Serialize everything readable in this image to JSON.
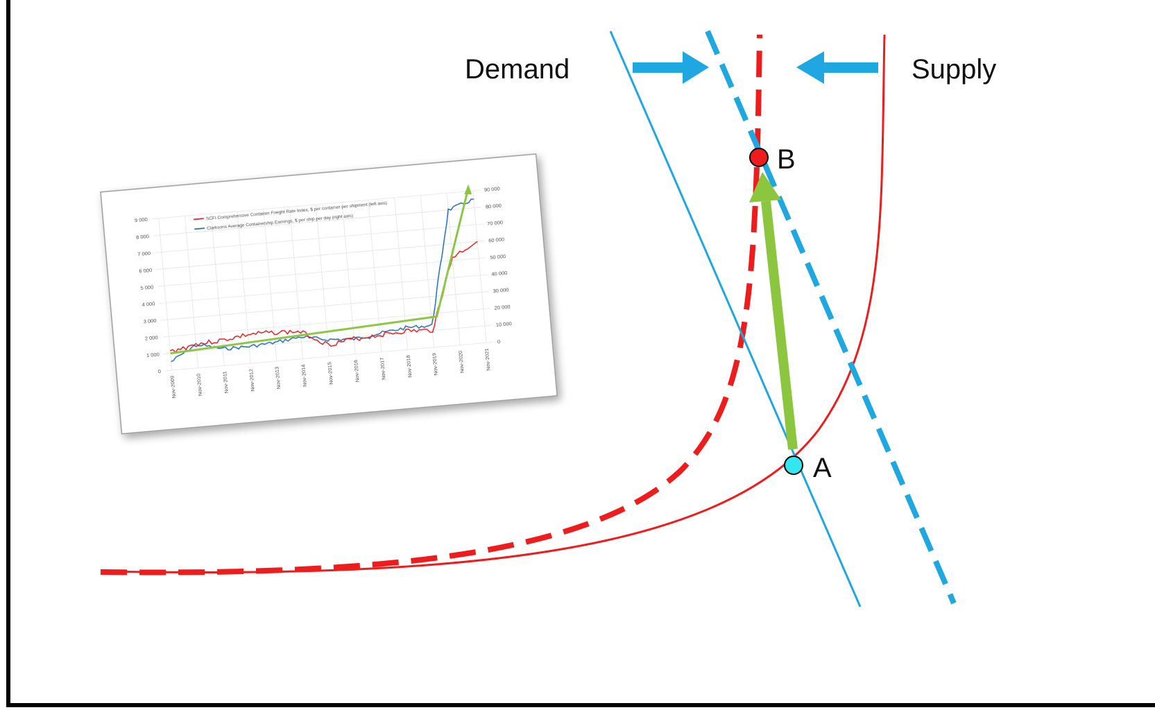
{
  "labels": {
    "demand": "Demand",
    "supply": "Supply",
    "point_a": "A",
    "point_b": "B"
  },
  "colors": {
    "demand_line": "#1ea7e1",
    "supply_curve": "#ee1c1c",
    "arrow_green": "#8cc63f",
    "point_a_fill": "#33e6f0",
    "point_b_fill": "#ee1c1c",
    "axis": "#000000"
  },
  "inset_chart": {
    "legend": [
      {
        "label": "SCFI Comprehensive Container Freight Rate Index, $ per container per shipment (left axis)",
        "color": "#e31a1c"
      },
      {
        "label": "Clarksons Average Containership Earnings, $ per ship per day (right axis)",
        "color": "#1f6fbf"
      }
    ],
    "left_ticks": [
      "9 000",
      "8 000",
      "7 000",
      "6 000",
      "5 000",
      "4 000",
      "3 000",
      "2 000",
      "1 000",
      "0"
    ],
    "right_ticks": [
      "90 000",
      "80 000",
      "70 000",
      "60 000",
      "50 000",
      "40 000",
      "30 000",
      "20 000",
      "10 000",
      "0"
    ],
    "x_ticks": [
      "Nov-2009",
      "Nov-2010",
      "Nov-2011",
      "Nov-2012",
      "Nov-2013",
      "Nov-2014",
      "Nov-2015",
      "Nov-2016",
      "Nov-2017",
      "Nov-2018",
      "Nov-2019",
      "Nov-2020",
      "Nov-2021"
    ]
  },
  "chart_data": {
    "type": "line",
    "title": "",
    "xlabel": "",
    "ylabel": "",
    "x": [
      "Nov-2009",
      "Nov-2010",
      "Nov-2011",
      "Nov-2012",
      "Nov-2013",
      "Nov-2014",
      "Nov-2015",
      "Nov-2016",
      "Nov-2017",
      "Nov-2018",
      "Nov-2019",
      "Nov-2020",
      "Nov-2021"
    ],
    "ylim": [
      0,
      9000
    ],
    "y2lim": [
      0,
      90000
    ],
    "grid": true,
    "legend": "top-left",
    "series": [
      {
        "name": "SCFI Comprehensive Container Freight Rate Index, $ per container per shipment (left axis)",
        "axis": "left",
        "values": [
          1100,
          1400,
          1500,
          1700,
          1700,
          1600,
          700,
          900,
          1000,
          1100,
          1000,
          5200,
          6000
        ]
      },
      {
        "name": "Clarksons Average Containership Earnings, $ per ship per day (right axis)",
        "axis": "right",
        "values": [
          5000,
          14000,
          10000,
          10000,
          11000,
          13000,
          10000,
          9000,
          11000,
          13000,
          13000,
          80000,
          85000
        ]
      }
    ]
  }
}
